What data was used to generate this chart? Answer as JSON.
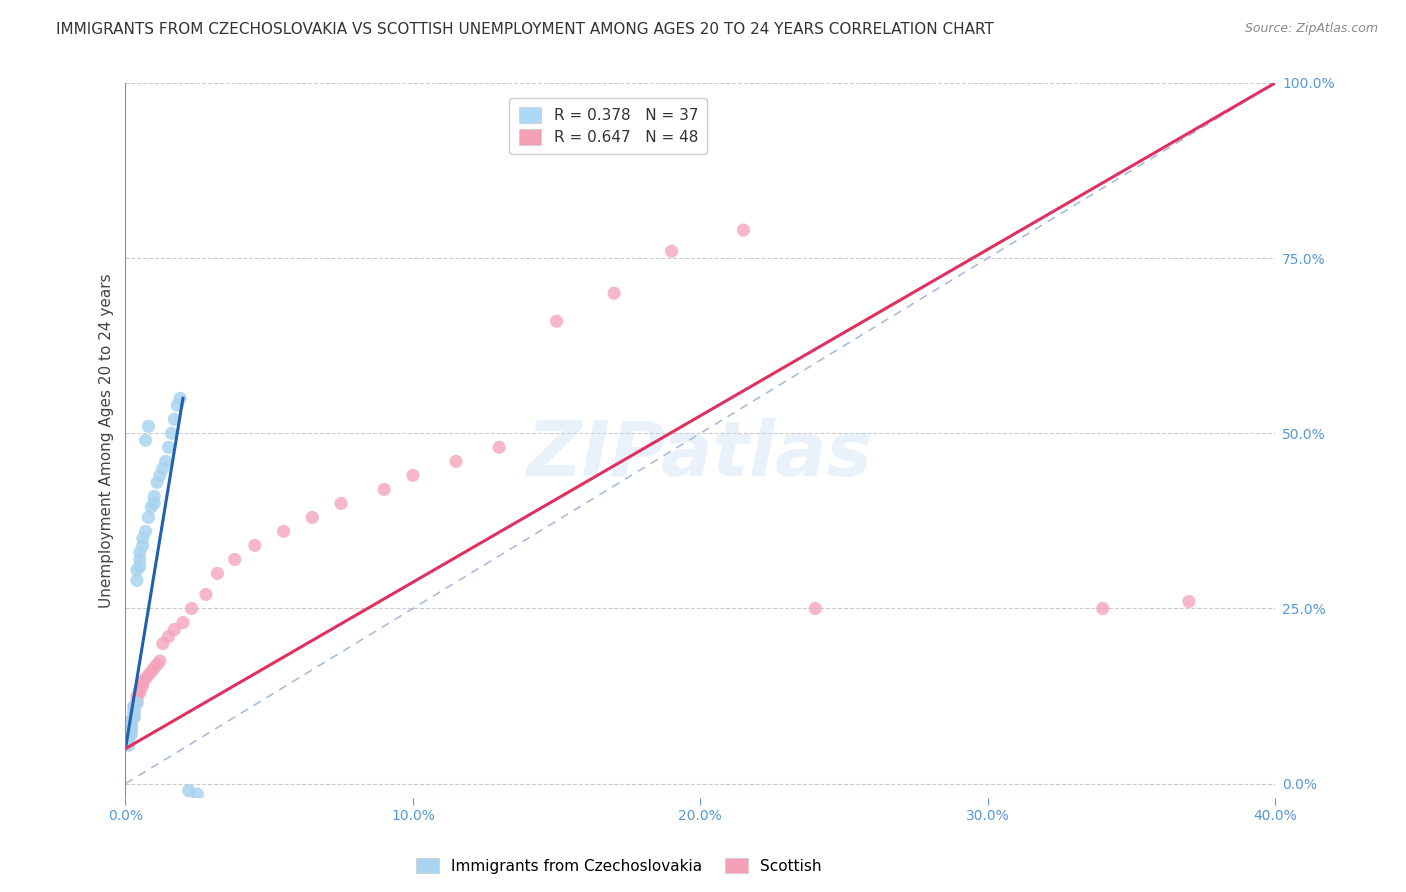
{
  "title": "IMMIGRANTS FROM CZECHOSLOVAKIA VS SCOTTISH UNEMPLOYMENT AMONG AGES 20 TO 24 YEARS CORRELATION CHART",
  "source": "Source: ZipAtlas.com",
  "ylabel": "Unemployment Among Ages 20 to 24 years",
  "legend_entries": [
    {
      "label": "Immigrants from Czechoslovakia",
      "color": "#add8f7",
      "R": 0.378,
      "N": 37
    },
    {
      "label": "Scottish",
      "color": "#f4a0b5",
      "R": 0.647,
      "N": 48
    }
  ],
  "xlim": [
    0.0,
    0.4
  ],
  "ylim": [
    -0.02,
    1.0
  ],
  "xticks": [
    0.0,
    0.1,
    0.2,
    0.3,
    0.4
  ],
  "yticks_right": [
    0.0,
    0.25,
    0.5,
    0.75,
    1.0
  ],
  "blue_scatter_x": [
    0.001,
    0.001,
    0.001,
    0.002,
    0.002,
    0.002,
    0.002,
    0.003,
    0.003,
    0.003,
    0.003,
    0.004,
    0.004,
    0.004,
    0.005,
    0.005,
    0.005,
    0.006,
    0.006,
    0.007,
    0.007,
    0.008,
    0.008,
    0.009,
    0.01,
    0.01,
    0.011,
    0.012,
    0.013,
    0.014,
    0.015,
    0.016,
    0.017,
    0.018,
    0.019,
    0.022,
    0.025
  ],
  "blue_scatter_y": [
    0.055,
    0.06,
    0.065,
    0.07,
    0.08,
    0.085,
    0.09,
    0.095,
    0.1,
    0.105,
    0.11,
    0.115,
    0.29,
    0.305,
    0.31,
    0.32,
    0.33,
    0.34,
    0.35,
    0.36,
    0.49,
    0.51,
    0.38,
    0.395,
    0.4,
    0.41,
    0.43,
    0.44,
    0.45,
    0.46,
    0.48,
    0.5,
    0.52,
    0.54,
    0.55,
    -0.01,
    -0.015
  ],
  "pink_scatter_x": [
    0.001,
    0.001,
    0.001,
    0.001,
    0.002,
    0.002,
    0.002,
    0.002,
    0.003,
    0.003,
    0.003,
    0.003,
    0.004,
    0.004,
    0.004,
    0.005,
    0.005,
    0.006,
    0.006,
    0.007,
    0.008,
    0.009,
    0.01,
    0.011,
    0.012,
    0.013,
    0.015,
    0.017,
    0.02,
    0.023,
    0.028,
    0.032,
    0.038,
    0.045,
    0.055,
    0.065,
    0.075,
    0.09,
    0.1,
    0.115,
    0.13,
    0.15,
    0.17,
    0.19,
    0.215,
    0.24,
    0.34,
    0.37
  ],
  "pink_scatter_y": [
    0.055,
    0.06,
    0.065,
    0.07,
    0.075,
    0.08,
    0.085,
    0.09,
    0.095,
    0.1,
    0.105,
    0.11,
    0.115,
    0.12,
    0.125,
    0.13,
    0.135,
    0.14,
    0.145,
    0.15,
    0.155,
    0.16,
    0.165,
    0.17,
    0.175,
    0.2,
    0.21,
    0.22,
    0.23,
    0.25,
    0.27,
    0.3,
    0.32,
    0.34,
    0.36,
    0.38,
    0.4,
    0.42,
    0.44,
    0.46,
    0.48,
    0.66,
    0.7,
    0.76,
    0.79,
    0.25,
    0.25,
    0.26
  ],
  "blue_line_x": [
    0.0,
    0.02
  ],
  "blue_line_y": [
    0.05,
    0.55
  ],
  "pink_line_x": [
    0.0,
    0.4
  ],
  "pink_line_y": [
    0.05,
    1.0
  ],
  "diag_line_x": [
    0.0,
    0.4
  ],
  "diag_line_y": [
    0.0,
    1.0
  ],
  "watermark": "ZIPatlas",
  "bg_color": "#ffffff",
  "grid_color": "#cccccc",
  "blue_dot_color": "#a8d4f0",
  "blue_line_color": "#2060b0",
  "pink_dot_color": "#f4a0b8",
  "pink_line_color": "#e03060",
  "title_fontsize": 11,
  "label_fontsize": 11,
  "tick_fontsize": 10,
  "legend_r_color": "#5599dd",
  "legend_n_color": "#e03060"
}
